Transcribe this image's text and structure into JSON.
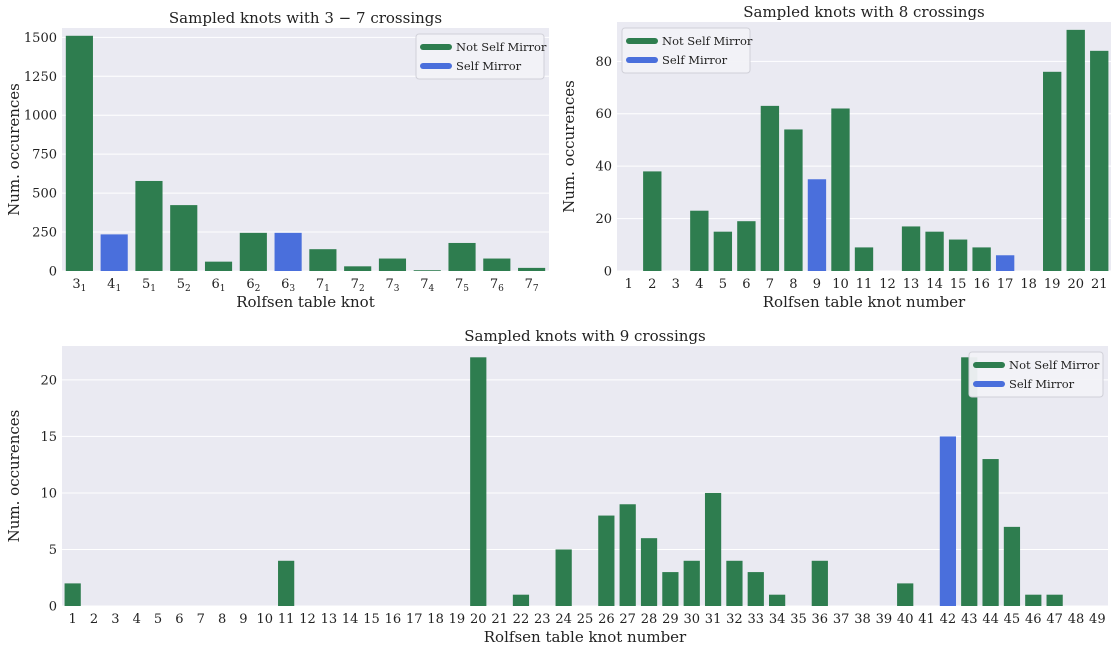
{
  "colors": {
    "not_self_mirror": "#2e7d4f",
    "self_mirror": "#4a6fdc",
    "panel_bg": "#eaeaf2",
    "grid": "#ffffff"
  },
  "chart_data": [
    {
      "type": "bar",
      "title": "Sampled knots with 3 − 7 crossings",
      "xlabel": "Rolfsen table knot",
      "ylabel": "Num. occurences",
      "ylim": [
        0,
        1560
      ],
      "yticks": [
        0,
        250,
        500,
        750,
        1000,
        1250,
        1500
      ],
      "legend": "top-right",
      "categories": [
        {
          "main": "3",
          "sub": "1"
        },
        {
          "main": "4",
          "sub": "1"
        },
        {
          "main": "5",
          "sub": "1"
        },
        {
          "main": "5",
          "sub": "2"
        },
        {
          "main": "6",
          "sub": "1"
        },
        {
          "main": "6",
          "sub": "2"
        },
        {
          "main": "6",
          "sub": "3"
        },
        {
          "main": "7",
          "sub": "1"
        },
        {
          "main": "7",
          "sub": "2"
        },
        {
          "main": "7",
          "sub": "3"
        },
        {
          "main": "7",
          "sub": "4"
        },
        {
          "main": "7",
          "sub": "5"
        },
        {
          "main": "7",
          "sub": "6"
        },
        {
          "main": "7",
          "sub": "7"
        }
      ],
      "values": [
        1510,
        235,
        578,
        423,
        60,
        245,
        245,
        140,
        30,
        80,
        5,
        180,
        80,
        20
      ],
      "self_mirror": [
        false,
        true,
        false,
        false,
        false,
        false,
        true,
        false,
        false,
        false,
        false,
        false,
        false,
        false
      ],
      "series": [
        {
          "name": "Not Self Mirror"
        },
        {
          "name": "Self Mirror"
        }
      ]
    },
    {
      "type": "bar",
      "title": "Sampled knots with 8 crossings",
      "xlabel": "Rolfsen table knot number",
      "ylabel": "Num. occurences",
      "ylim": [
        0,
        95
      ],
      "yticks": [
        0,
        20,
        40,
        60,
        80
      ],
      "legend": "top-left",
      "categories": [
        "1",
        "2",
        "3",
        "4",
        "5",
        "6",
        "7",
        "8",
        "9",
        "10",
        "11",
        "12",
        "13",
        "14",
        "15",
        "16",
        "17",
        "18",
        "19",
        "20",
        "21"
      ],
      "values": [
        0,
        38,
        0,
        23,
        15,
        19,
        63,
        54,
        35,
        62,
        9,
        0,
        17,
        15,
        12,
        9,
        6,
        0,
        76,
        92,
        84
      ],
      "self_mirror": [
        false,
        false,
        false,
        false,
        false,
        false,
        false,
        false,
        true,
        false,
        false,
        false,
        false,
        false,
        false,
        false,
        true,
        false,
        false,
        false,
        false
      ],
      "series": [
        {
          "name": "Not Self Mirror"
        },
        {
          "name": "Self Mirror"
        }
      ]
    },
    {
      "type": "bar",
      "title": "Sampled knots with 9 crossings",
      "xlabel": "Rolfsen table knot number",
      "ylabel": "Num. occurences",
      "ylim": [
        0,
        23
      ],
      "yticks": [
        0,
        5,
        10,
        15,
        20
      ],
      "legend": "top-right",
      "categories": [
        "1",
        "2",
        "3",
        "4",
        "5",
        "6",
        "7",
        "8",
        "9",
        "10",
        "11",
        "12",
        "13",
        "14",
        "15",
        "16",
        "17",
        "18",
        "19",
        "20",
        "21",
        "22",
        "23",
        "24",
        "25",
        "26",
        "27",
        "28",
        "29",
        "30",
        "31",
        "32",
        "33",
        "34",
        "35",
        "36",
        "37",
        "38",
        "39",
        "40",
        "41",
        "42",
        "43",
        "44",
        "45",
        "46",
        "47",
        "48",
        "49"
      ],
      "values": [
        2,
        0,
        0,
        0,
        0,
        0,
        0,
        0,
        0,
        0,
        4,
        0,
        0,
        0,
        0,
        0,
        0,
        0,
        0,
        22,
        0,
        1,
        0,
        5,
        0,
        8,
        9,
        6,
        3,
        4,
        10,
        4,
        3,
        1,
        0,
        4,
        0,
        0,
        0,
        2,
        0,
        15,
        22,
        13,
        7,
        1,
        1,
        0,
        0
      ],
      "self_mirror": [
        false,
        false,
        false,
        false,
        false,
        false,
        false,
        false,
        false,
        false,
        false,
        false,
        false,
        false,
        false,
        false,
        false,
        false,
        false,
        false,
        false,
        false,
        false,
        false,
        false,
        false,
        false,
        false,
        false,
        false,
        false,
        false,
        false,
        false,
        false,
        false,
        false,
        false,
        false,
        false,
        false,
        true,
        false,
        false,
        false,
        false,
        false,
        false,
        false
      ],
      "series": [
        {
          "name": "Not Self Mirror"
        },
        {
          "name": "Self Mirror"
        }
      ]
    }
  ]
}
